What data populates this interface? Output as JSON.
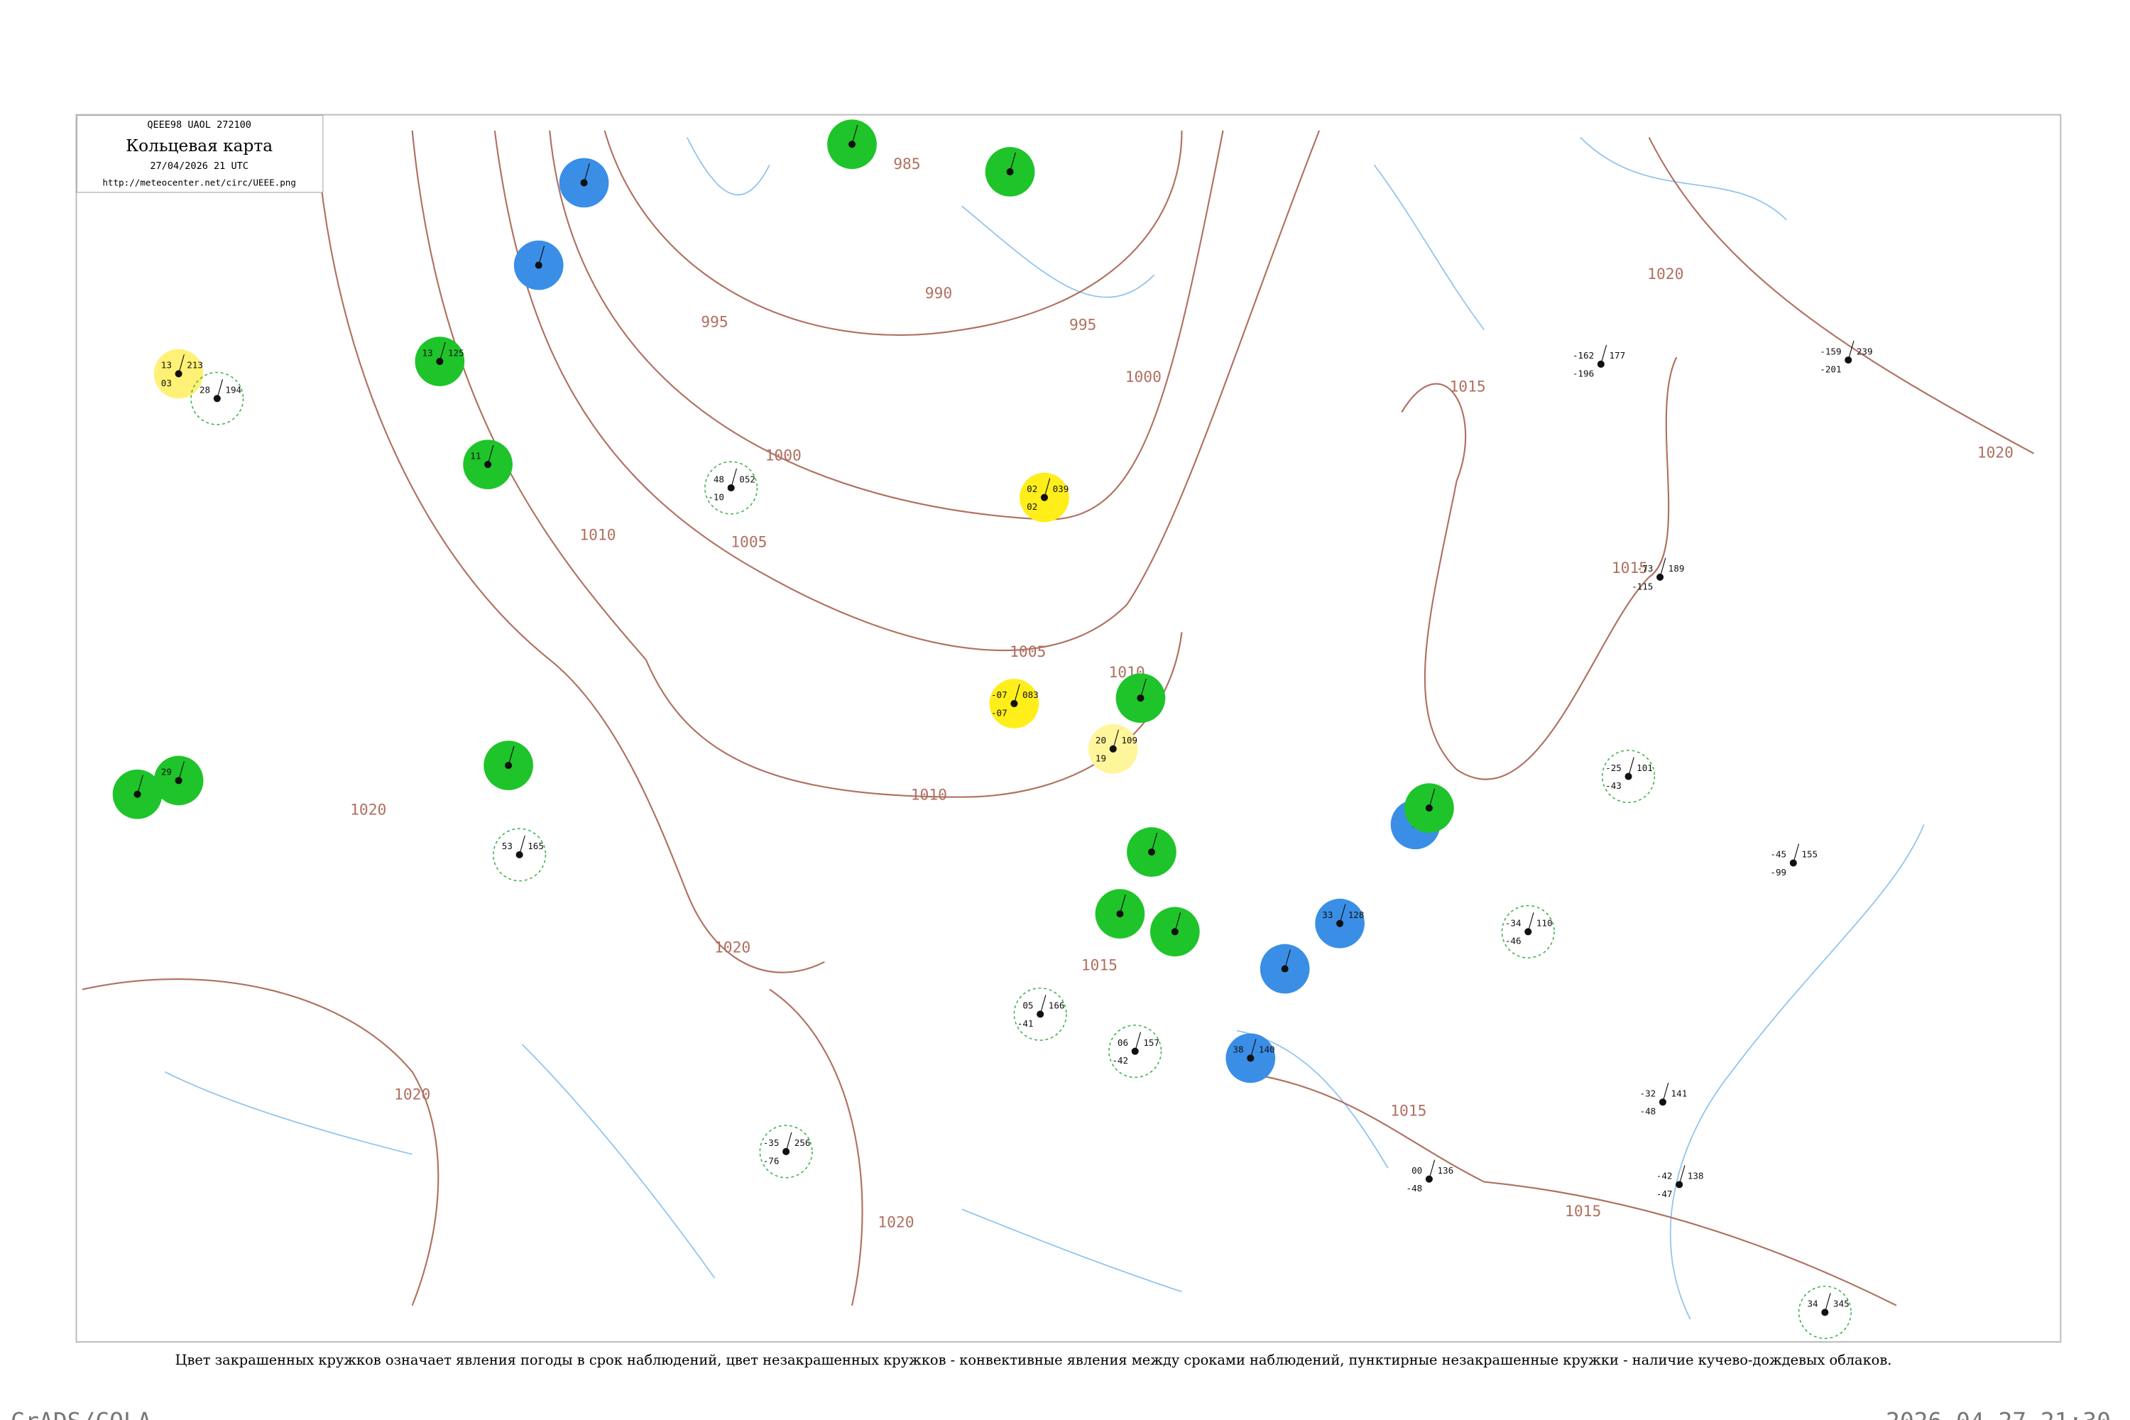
{
  "header": {
    "code": "QEEE98  UAOL  272100",
    "title": "Кольцевая карта",
    "datetime": "27/04/2026 21 UTC",
    "url": "http://meteocenter.net/circ/UEEE.png"
  },
  "isobar_labels": [
    985,
    990,
    995,
    995,
    1000,
    1000,
    1005,
    1005,
    1010,
    1010,
    1010,
    1015,
    1015,
    1015,
    1015,
    1015,
    1020,
    1020,
    1020,
    1020,
    1020,
    1020
  ],
  "stations": [
    {
      "temperature": "13",
      "pressure": "213",
      "dew_point": "03",
      "color": "#fff176"
    },
    {
      "temperature": "28",
      "pressure": "194",
      "dew_point": "",
      "ring": "dashed"
    },
    {
      "temperature": "13",
      "pressure": "125",
      "dew_point": "",
      "color": "#1ec42a"
    },
    {
      "temperature": "11",
      "pressure": "",
      "dew_point": "",
      "color": "#1ec42a"
    },
    {
      "temperature": "",
      "pressure": "",
      "dew_point": "",
      "color": "#3a8ee6"
    },
    {
      "temperature": "",
      "pressure": "",
      "dew_point": "",
      "color": "#3a8ee6"
    },
    {
      "temperature": "",
      "pressure": "",
      "dew_point": "",
      "color": "#1ec42a"
    },
    {
      "temperature": "",
      "pressure": "",
      "dew_point": "",
      "color": "#1ec42a"
    },
    {
      "temperature": "02",
      "pressure": "039",
      "dew_point": "02",
      "color": "#ffee1a"
    },
    {
      "temperature": "-07",
      "pressure": "083",
      "dew_point": "-07",
      "color": "#ffee1a"
    },
    {
      "temperature": "20",
      "pressure": "109",
      "dew_point": "19",
      "color": "#fff59a"
    },
    {
      "temperature": "",
      "pressure": "",
      "dew_point": "",
      "color": "#1ec42a"
    },
    {
      "temperature": "",
      "pressure": "",
      "dew_point": "",
      "color": "#1ec42a"
    },
    {
      "temperature": "",
      "pressure": "",
      "dew_point": "",
      "color": "#1ec42a"
    },
    {
      "temperature": "",
      "pressure": "",
      "dew_point": "",
      "color": "#1ec42a"
    },
    {
      "temperature": "",
      "pressure": "",
      "dew_point": "",
      "color": "#3a8ee6"
    },
    {
      "temperature": "33",
      "pressure": "128",
      "dew_point": "",
      "color": "#3a8ee6"
    },
    {
      "temperature": "38",
      "pressure": "140",
      "dew_point": "",
      "color": "#3a8ee6"
    },
    {
      "temperature": "",
      "pressure": "",
      "dew_point": "",
      "color": "#3a8ee6"
    },
    {
      "temperature": "",
      "pressure": "",
      "dew_point": "",
      "color": "#1ec42a"
    },
    {
      "temperature": "",
      "pressure": "",
      "dew_point": "",
      "color": "#1ec42a"
    },
    {
      "temperature": "",
      "pressure": "",
      "dew_point": "",
      "color": "#1ec42a"
    },
    {
      "temperature": "29",
      "pressure": "",
      "dew_point": "",
      "color": "#1ec42a"
    },
    {
      "temperature": "48",
      "pressure": "052",
      "dew_point": "-10",
      "ring": "dashed"
    },
    {
      "temperature": "-25",
      "pressure": "101",
      "dew_point": "-43",
      "ring": "dashed"
    },
    {
      "temperature": "-34",
      "pressure": "110",
      "dew_point": "-46",
      "ring": "dashed"
    },
    {
      "temperature": "05",
      "pressure": "166",
      "dew_point": "-41",
      "ring": "dashed"
    },
    {
      "temperature": "06",
      "pressure": "157",
      "dew_point": "-42",
      "ring": "dashed"
    },
    {
      "temperature": "53",
      "pressure": "165",
      "dew_point": "",
      "ring": "dashed"
    },
    {
      "temperature": "-35",
      "pressure": "256",
      "dew_point": "-76",
      "ring": "dashed"
    },
    {
      "temperature": "34",
      "pressure": "345",
      "dew_point": "",
      "ring": "dashed"
    },
    {
      "temperature": "-73",
      "pressure": "189",
      "dew_point": "-115",
      "ring": ""
    },
    {
      "temperature": "-159",
      "pressure": "239",
      "dew_point": "-201",
      "ring": ""
    },
    {
      "temperature": "-162",
      "pressure": "177",
      "dew_point": "-196",
      "ring": ""
    },
    {
      "temperature": "-42",
      "pressure": "138",
      "dew_point": "-47",
      "ring": ""
    },
    {
      "temperature": "-32",
      "pressure": "141",
      "dew_point": "-48",
      "ring": ""
    },
    {
      "temperature": "00",
      "pressure": "136",
      "dew_point": "-48",
      "ring": ""
    },
    {
      "temperature": "-45",
      "pressure": "155",
      "dew_point": "-99",
      "ring": ""
    }
  ],
  "caption": "Цвет закрашенных кружков означает явления погоды в срок наблюдений, цвет незакрашенных кружков - конвективные явления между сроками наблюдений, пунктирные незакрашенные кружки - наличие кучево-дождевых облаков.",
  "footer": {
    "left": "GrADS/COLA",
    "right": "2026-04-27-21:30"
  }
}
